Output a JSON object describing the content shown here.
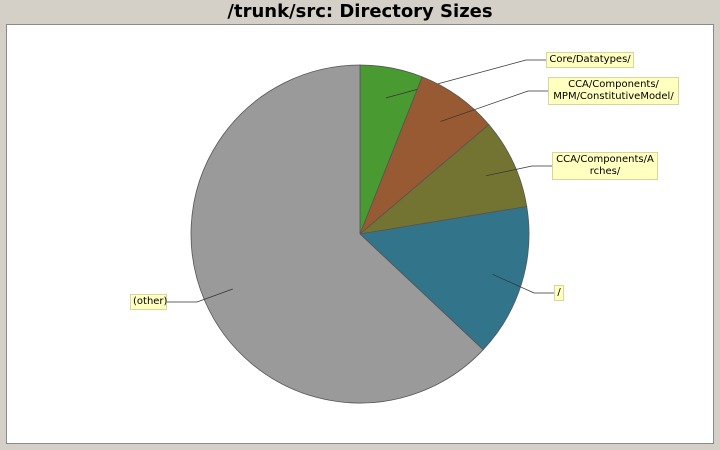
{
  "chart_data": {
    "type": "pie",
    "title": "/trunk/src: Directory Sizes",
    "slices": [
      {
        "label": "Core/Datatypes/",
        "percent": 6.0,
        "color": "#4a9a32"
      },
      {
        "label": "CCA/Components/\nMPM/ConstitutiveModel/",
        "percent": 7.8,
        "color": "#985a32"
      },
      {
        "label": "CCA/Components/A\nrches/",
        "percent": 8.6,
        "color": "#747432"
      },
      {
        "label": "/",
        "percent": 14.6,
        "color": "#32748a"
      },
      {
        "label": "(other)",
        "percent": 63.0,
        "color": "#9a9a9a"
      }
    ]
  }
}
